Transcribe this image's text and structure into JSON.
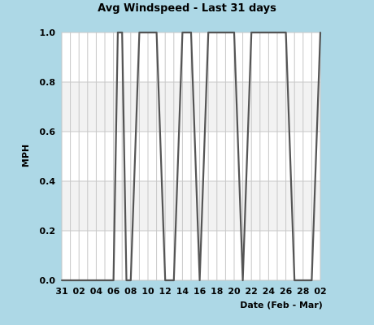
{
  "chart_data": {
    "type": "line",
    "title": "Avg Windspeed - Last 31 days",
    "xlabel": "Date (Feb - Mar)",
    "ylabel": "MPH",
    "ylim": [
      0,
      1
    ],
    "yticks": [
      "0.0",
      "0.2",
      "0.4",
      "0.6",
      "0.8",
      "1.0"
    ],
    "xticks": [
      "31",
      "02",
      "04",
      "06",
      "08",
      "10",
      "12",
      "14",
      "16",
      "18",
      "20",
      "22",
      "24",
      "26",
      "28",
      "02"
    ],
    "grid": true,
    "colors": {
      "background": "#add8e6",
      "plot": "#ffffff",
      "band": "#f2f2f2",
      "grid": "#c8c8c8",
      "line": "#555555"
    },
    "series": [
      {
        "x": [
          0,
          6,
          6.5,
          7,
          7.5,
          8,
          9,
          11,
          12,
          13,
          14,
          15,
          16,
          17,
          20,
          21,
          22,
          26,
          27,
          29,
          30
        ],
        "values": [
          0,
          0,
          1,
          1,
          0,
          0,
          1,
          1,
          0,
          0,
          1,
          1,
          0,
          1,
          1,
          0,
          1,
          1,
          0,
          0,
          1
        ]
      }
    ]
  }
}
